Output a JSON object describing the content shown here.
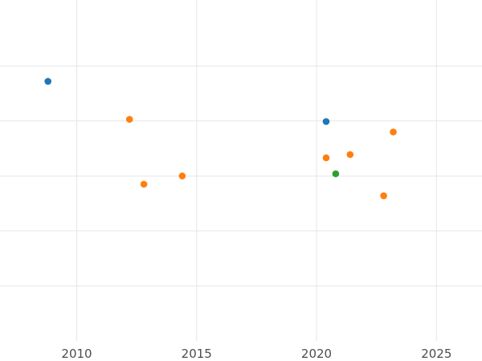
{
  "chart_data": {
    "type": "scatter",
    "title": "",
    "xlabel": "",
    "ylabel": "",
    "xlim": [
      2006.8,
      2026.9
    ],
    "ylim": [
      0,
      6.2
    ],
    "x_ticks": [
      2010,
      2015,
      2020,
      2025
    ],
    "x_tick_labels": [
      "2010",
      "2015",
      "2020",
      "2025"
    ],
    "y_gridlines": [
      1,
      2,
      3,
      4,
      5
    ],
    "grid": true,
    "legend": "none",
    "series": [
      {
        "color": "#1f77b4",
        "points": [
          {
            "x": 2008.8,
            "y": 4.72
          },
          {
            "x": 2020.4,
            "y": 3.99
          }
        ]
      },
      {
        "color": "#ff7f0e",
        "points": [
          {
            "x": 2012.2,
            "y": 4.03
          },
          {
            "x": 2012.8,
            "y": 2.85
          },
          {
            "x": 2014.4,
            "y": 3.0
          },
          {
            "x": 2020.4,
            "y": 3.33
          },
          {
            "x": 2021.4,
            "y": 3.39
          },
          {
            "x": 2022.8,
            "y": 2.64
          },
          {
            "x": 2023.2,
            "y": 3.8
          }
        ]
      },
      {
        "color": "#2ca02c",
        "points": [
          {
            "x": 2020.8,
            "y": 3.04
          }
        ]
      }
    ]
  }
}
